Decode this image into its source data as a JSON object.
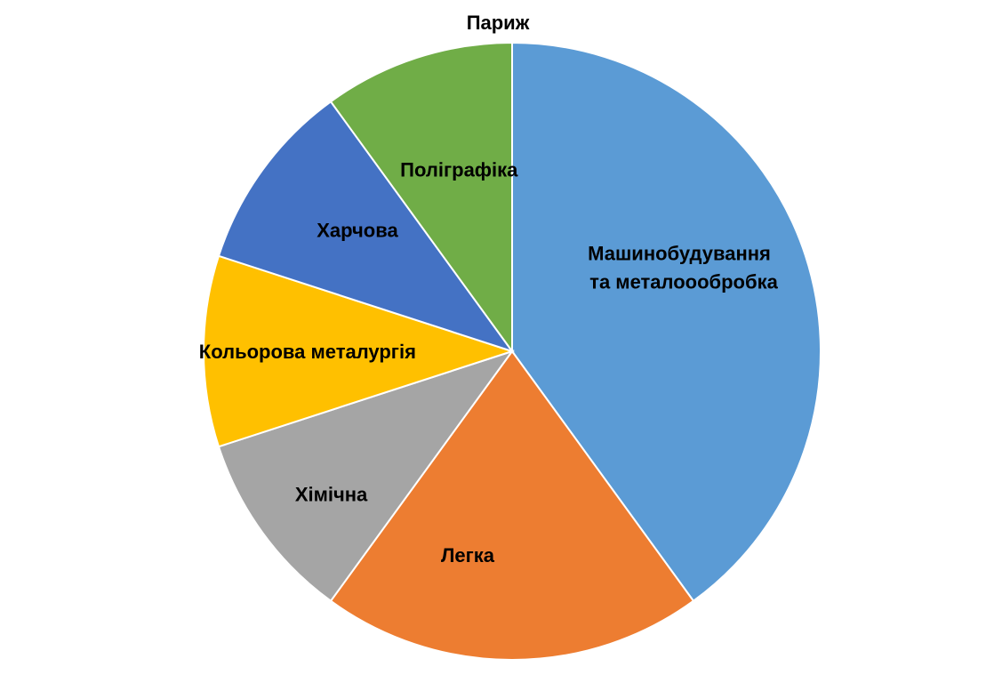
{
  "chart_data": {
    "type": "pie",
    "title": "Париж",
    "start_angle_deg": 0,
    "direction": "clockwise",
    "slices": [
      {
        "label": "Машинобудування\nта металооoбробка",
        "value": 40,
        "color": "#5B9BD5"
      },
      {
        "label": "Легка",
        "value": 20,
        "color": "#ED7D31"
      },
      {
        "label": "Хімічна",
        "value": 10,
        "color": "#A5A5A5"
      },
      {
        "label": "Кольорова металургія",
        "value": 10,
        "color": "#FFC000"
      },
      {
        "label": "Харчова",
        "value": 10,
        "color": "#4472C4"
      },
      {
        "label": "Поліграфіка",
        "value": 10,
        "color": "#70AD47"
      }
    ],
    "slice_border_color": "#FFFFFF",
    "legend": "none"
  }
}
